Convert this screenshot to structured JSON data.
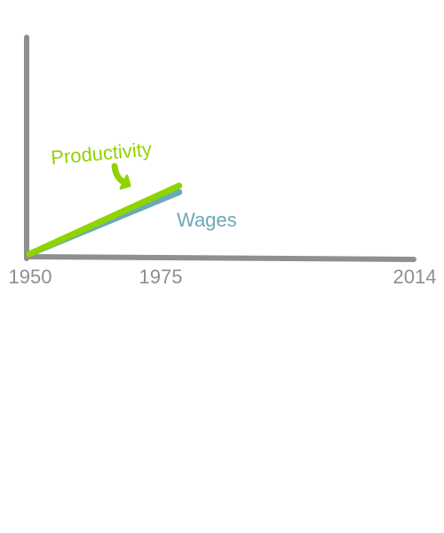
{
  "colors": {
    "axis": "#8f8f8f",
    "productivity": "#8fd400",
    "wages": "#6aa9b8",
    "background": "#ffffff"
  },
  "chart_data": {
    "type": "line",
    "title": "",
    "xlabel": "",
    "ylabel": "",
    "x_ticks": [
      "1950",
      "1975",
      "2014"
    ],
    "xlim": [
      1950,
      2014
    ],
    "grid": false,
    "legend": "none",
    "annotations": [
      {
        "text": "Productivity",
        "series": "Productivity",
        "color": "#8fd400"
      },
      {
        "text": "Wages",
        "series": "Wages",
        "color": "#6aa9b8"
      }
    ],
    "series": [
      {
        "name": "Productivity",
        "color": "#8fd400",
        "x": [
          1950,
          1975
        ],
        "y": [
          0,
          1.0
        ]
      },
      {
        "name": "Wages",
        "color": "#6aa9b8",
        "x": [
          1950,
          1975
        ],
        "y": [
          0,
          0.93
        ]
      }
    ]
  }
}
